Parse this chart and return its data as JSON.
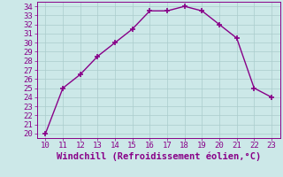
{
  "x": [
    10,
    11,
    12,
    13,
    14,
    15,
    16,
    17,
    18,
    19,
    20,
    21,
    22,
    23
  ],
  "y": [
    20.0,
    25.0,
    26.5,
    28.5,
    30.0,
    31.5,
    33.5,
    33.5,
    34.0,
    33.5,
    32.0,
    30.5,
    25.0,
    24.0
  ],
  "line_color": "#880088",
  "marker": "+",
  "marker_size": 4,
  "marker_linewidth": 1.2,
  "line_width": 1.0,
  "bg_color": "#cce8e8",
  "grid_color": "#aacccc",
  "xlabel": "Windchill (Refroidissement éolien,°C)",
  "xlabel_color": "#880088",
  "xlabel_fontsize": 7.5,
  "tick_label_color": "#880088",
  "tick_fontsize": 6.5,
  "xlim": [
    9.5,
    23.5
  ],
  "ylim": [
    19.5,
    34.5
  ],
  "yticks": [
    20,
    21,
    22,
    23,
    24,
    25,
    26,
    27,
    28,
    29,
    30,
    31,
    32,
    33,
    34
  ],
  "xticks": [
    10,
    11,
    12,
    13,
    14,
    15,
    16,
    17,
    18,
    19,
    20,
    21,
    22,
    23
  ],
  "spine_color": "#880088"
}
